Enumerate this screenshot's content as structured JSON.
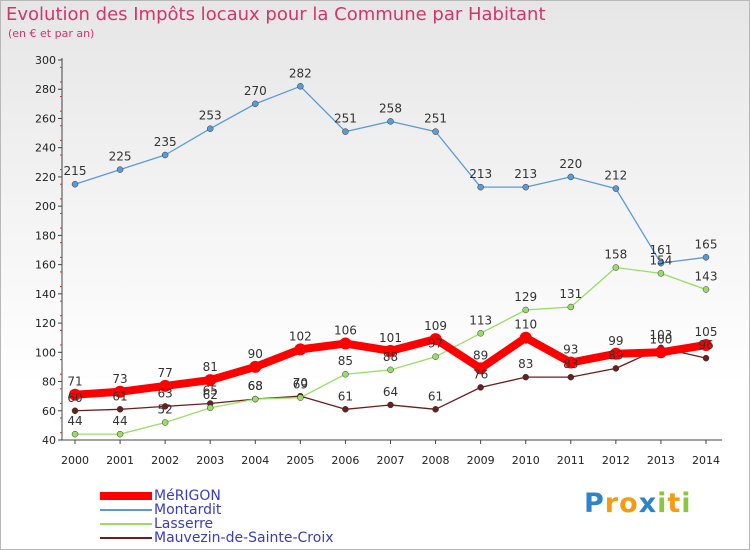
{
  "chart_data": {
    "type": "line",
    "title": "Evolution des Impôts locaux pour la Commune par Habitant",
    "subtitle": "(en € et par an)",
    "x": [
      "2000",
      "2001",
      "2002",
      "2003",
      "2004",
      "2005",
      "2006",
      "2007",
      "2008",
      "2009",
      "2010",
      "2011",
      "2012",
      "2013",
      "2014"
    ],
    "ylim": [
      40,
      300
    ],
    "yticks": [
      40,
      60,
      80,
      100,
      120,
      140,
      160,
      180,
      200,
      220,
      240,
      260,
      280,
      300
    ],
    "grid": false,
    "legend_position": "bottom-left",
    "series": [
      {
        "name": "MéRIGON",
        "color": "#ff0000",
        "values": [
          71,
          73,
          77,
          81,
          90,
          102,
          106,
          101,
          109,
          89,
          110,
          93,
          99,
          100,
          105
        ]
      },
      {
        "name": "Montardit",
        "color": "#5b9bd5",
        "values": [
          215,
          225,
          235,
          253,
          270,
          282,
          251,
          258,
          251,
          213,
          213,
          220,
          212,
          161,
          165
        ]
      },
      {
        "name": "Lasserre",
        "color": "#99dd66",
        "values": [
          44,
          44,
          52,
          62,
          68,
          69,
          85,
          88,
          97,
          113,
          129,
          131,
          158,
          154,
          143
        ]
      },
      {
        "name": "Mauvezin-de-Sainte-Croix",
        "color": "#6b1e1e",
        "values": [
          60,
          61,
          63,
          65,
          68,
          70,
          61,
          64,
          61,
          76,
          83,
          83,
          89,
          103,
          96
        ]
      }
    ]
  },
  "logo": {
    "letters": [
      {
        "ch": "P",
        "color": "#2f83c8"
      },
      {
        "ch": "r",
        "color": "#f39c12"
      },
      {
        "ch": "o",
        "color": "#f39c12"
      },
      {
        "ch": "x",
        "color": "#2f83c8"
      },
      {
        "ch": "i",
        "color": "#8cc63f"
      },
      {
        "ch": "t",
        "color": "#f39c12"
      },
      {
        "ch": "i",
        "color": "#8cc63f"
      }
    ]
  }
}
